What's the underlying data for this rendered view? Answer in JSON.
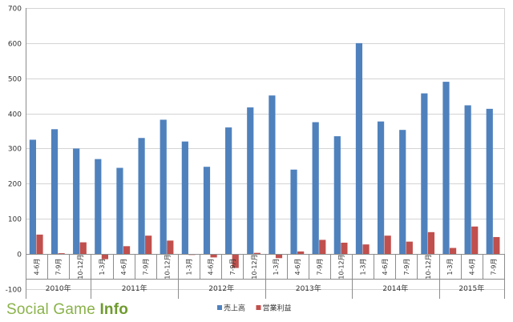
{
  "chart_data": {
    "type": "bar",
    "title": "",
    "xlabel": "",
    "ylabel": "",
    "ylim": [
      -100,
      700
    ],
    "yticks": [
      -100,
      0,
      100,
      200,
      300,
      400,
      500,
      600,
      700
    ],
    "grid": true,
    "legend_position": "bottom-center",
    "categories": [
      "4-6月",
      "7-9月",
      "10-12月",
      "1-3月",
      "4-6月",
      "7-9月",
      "10-12月",
      "1-3月",
      "4-6月",
      "7-9月",
      "10-12月",
      "1-3月",
      "4-6月",
      "7-9月",
      "10-12月",
      "1-3月",
      "4-6月",
      "7-9月",
      "10-12月",
      "1-3月",
      "4-6月",
      "7-9月"
    ],
    "groups": [
      {
        "label": "2010年",
        "count": 3
      },
      {
        "label": "2011年",
        "count": 4
      },
      {
        "label": "2012年",
        "count": 4
      },
      {
        "label": "2013年",
        "count": 4
      },
      {
        "label": "2014年",
        "count": 4
      },
      {
        "label": "2015年",
        "count": 3
      }
    ],
    "series": [
      {
        "name": "売上高",
        "color": "#4f81bd",
        "values": [
          325,
          355,
          300,
          270,
          245,
          330,
          382,
          320,
          248,
          360,
          417,
          451,
          240,
          375,
          335,
          600,
          377,
          353,
          457,
          490,
          423,
          413
        ]
      },
      {
        "name": "営業利益",
        "color": "#c0504d",
        "values": [
          55,
          2,
          33,
          -15,
          22,
          52,
          38,
          -3,
          -10,
          -40,
          3,
          -12,
          7,
          40,
          32,
          27,
          52,
          35,
          62,
          17,
          78,
          48
        ]
      }
    ]
  },
  "watermark": {
    "text_light": "Social Game ",
    "text_bold": "Info",
    "color": "#8ab24a"
  }
}
